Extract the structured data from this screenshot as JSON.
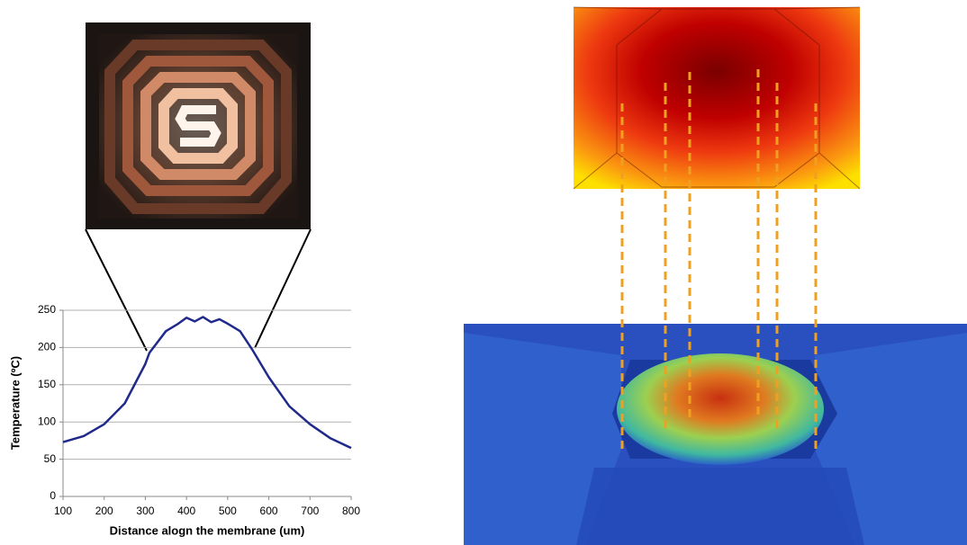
{
  "chart_data": {
    "type": "line",
    "x_label": "Distance alogn the membrane (um)",
    "y_label": "Temperature (ºC)",
    "x": [
      100,
      150,
      200,
      250,
      300,
      310,
      350,
      380,
      400,
      420,
      440,
      460,
      480,
      500,
      530,
      560,
      600,
      650,
      700,
      750,
      800
    ],
    "values": [
      73,
      81,
      97,
      125,
      178,
      193,
      222,
      232,
      240,
      235,
      241,
      234,
      238,
      232,
      222,
      197,
      160,
      121,
      97,
      78,
      65
    ],
    "color": "#1f2a8a",
    "xlim": [
      100,
      800
    ],
    "xticks": [
      100,
      200,
      300,
      400,
      500,
      600,
      700,
      800
    ],
    "ylim": [
      0,
      250
    ],
    "yticks": [
      0,
      50,
      100,
      150,
      200,
      250
    ],
    "grid": true
  }
}
